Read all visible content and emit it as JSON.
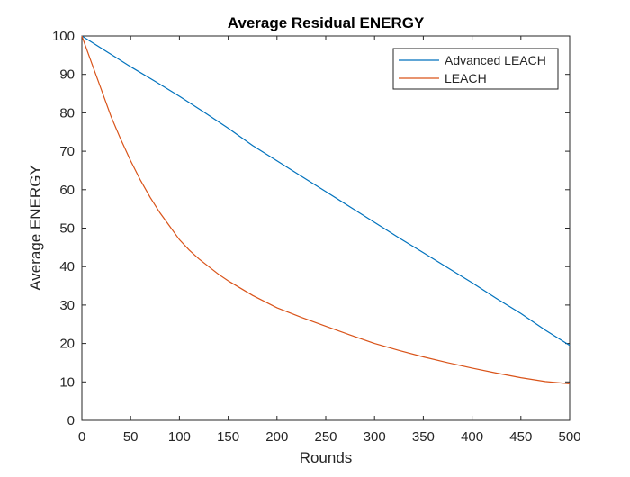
{
  "chart_data": {
    "type": "line",
    "title": "Average Residual ENERGY",
    "xlabel": "Rounds",
    "ylabel": "Average ENERGY",
    "xlim": [
      0,
      500
    ],
    "ylim": [
      0,
      100
    ],
    "xticks": [
      0,
      50,
      100,
      150,
      200,
      250,
      300,
      350,
      400,
      450,
      500
    ],
    "yticks": [
      0,
      10,
      20,
      30,
      40,
      50,
      60,
      70,
      80,
      90,
      100
    ],
    "grid": false,
    "legend_position": "top-right",
    "series": [
      {
        "name": "Advanced LEACH",
        "color": "#0072BD",
        "x": [
          0,
          25,
          50,
          75,
          100,
          125,
          150,
          175,
          200,
          225,
          250,
          275,
          300,
          325,
          350,
          375,
          400,
          425,
          450,
          475,
          500
        ],
        "y": [
          100,
          96,
          92,
          88.2,
          84.3,
          80.2,
          76,
          71.5,
          67.5,
          63.5,
          59.5,
          55.5,
          51.5,
          47.5,
          43.6,
          39.7,
          35.8,
          31.7,
          27.8,
          23.5,
          19.5
        ]
      },
      {
        "name": "LEACH",
        "color": "#D95319",
        "x": [
          0,
          10,
          20,
          30,
          40,
          50,
          60,
          70,
          80,
          90,
          100,
          110,
          120,
          130,
          140,
          150,
          175,
          200,
          225,
          250,
          275,
          300,
          325,
          350,
          375,
          400,
          425,
          450,
          475,
          500
        ],
        "y": [
          100,
          93,
          86,
          79,
          73,
          67.5,
          62.5,
          58,
          54,
          50.5,
          47,
          44.3,
          42,
          40,
          38,
          36.3,
          32.5,
          29.3,
          26.8,
          24.5,
          22.2,
          20,
          18.2,
          16.5,
          15,
          13.6,
          12.3,
          11.1,
          10.1,
          9.5
        ]
      }
    ]
  }
}
